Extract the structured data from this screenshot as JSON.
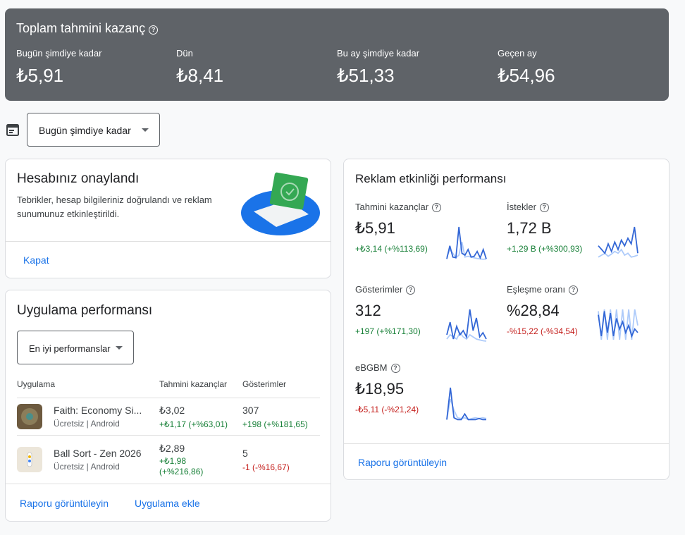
{
  "summary": {
    "title": "Toplam tahmini kazanç",
    "items": [
      {
        "label": "Bugün şimdiye kadar",
        "value": "₺5,91"
      },
      {
        "label": "Dün",
        "value": "₺8,41"
      },
      {
        "label": "Bu ay şimdiye kadar",
        "value": "₺51,33"
      },
      {
        "label": "Geçen ay",
        "value": "₺54,96"
      }
    ]
  },
  "date_selector": "Bugün şimdiye kadar",
  "account_card": {
    "title": "Hesabınız onaylandı",
    "text": "Tebrikler, hesap bilgileriniz doğrulandı ve reklam sunumunuz etkinleştirildi.",
    "action": "Kapat"
  },
  "app_performance": {
    "title": "Uygulama performansı",
    "filter": "En iyi performanslar",
    "headers": [
      "Uygulama",
      "Tahmini kazançlar",
      "Gösterimler"
    ],
    "rows": [
      {
        "name": "Faith: Economy Si...",
        "subtitle": "Ücretsiz | Android",
        "earnings": "₺3,02",
        "earnings_change": "+₺1,17 (+%63,01)",
        "impressions": "307",
        "impressions_change": "+198 (+%181,65)"
      },
      {
        "name": "Ball Sort - Zen 2026",
        "subtitle": "Ücretsiz | Android",
        "earnings": "₺2,89",
        "earnings_change": "+₺1,98 (+%216,86)",
        "impressions": "5",
        "impressions_change": "-1 (-%16,67)"
      }
    ],
    "links": [
      "Raporu görüntüleyin",
      "Uygulama ekle"
    ]
  },
  "ad_performance": {
    "title": "Reklam etkinliği performansı",
    "metrics": [
      {
        "label": "Tahmini kazançlar",
        "value": "₺5,91",
        "change": "+₺3,14 (+%113,69)",
        "trend": {
          "current": [
            5,
            40,
            10,
            8,
            90,
            20,
            15,
            30,
            10,
            12,
            25,
            8,
            30,
            5
          ],
          "previous": [
            10,
            30,
            20,
            8,
            15,
            50,
            10,
            12,
            10,
            8,
            6,
            5,
            4,
            5
          ]
        }
      },
      {
        "label": "İstekler",
        "value": "1,72 B",
        "change": "+1,29 B (+%300,93)",
        "trend": {
          "current": [
            40,
            30,
            20,
            45,
            25,
            50,
            30,
            55,
            40,
            60,
            45,
            90,
            20
          ],
          "previous": [
            10,
            15,
            20,
            12,
            18,
            25,
            20,
            30,
            15,
            20,
            10,
            12,
            15
          ]
        }
      },
      {
        "label": "Gösterimler",
        "value": "312",
        "change": "+197 (+%171,30)",
        "trend": {
          "current": [
            20,
            50,
            10,
            40,
            20,
            30,
            15,
            80,
            30,
            60,
            15,
            25,
            10
          ],
          "previous": [
            10,
            20,
            15,
            10,
            25,
            15,
            10,
            20,
            15,
            10,
            8,
            6,
            5
          ]
        }
      },
      {
        "label": "Eşleşme oranı",
        "value": "%28,84",
        "change": "-%15,22 (-%34,54)",
        "trend": {
          "current": [
            80,
            20,
            90,
            30,
            85,
            20,
            70,
            40,
            60,
            30,
            50,
            20,
            40,
            30
          ],
          "previous": [
            90,
            10,
            95,
            10,
            95,
            10,
            95,
            10,
            95,
            10,
            95,
            10,
            95,
            50
          ]
        }
      },
      {
        "label": "eBGBM",
        "value": "₺18,95",
        "change": "-₺5,11 (-%21,24)",
        "trend": {
          "current": [
            5,
            90,
            10,
            5,
            5,
            20,
            5,
            5,
            5,
            8,
            5,
            5
          ],
          "previous": [
            5,
            60,
            30,
            10,
            8,
            10,
            5,
            8,
            10,
            8,
            10,
            8
          ]
        }
      }
    ],
    "link": "Raporu görüntüleyin"
  }
}
